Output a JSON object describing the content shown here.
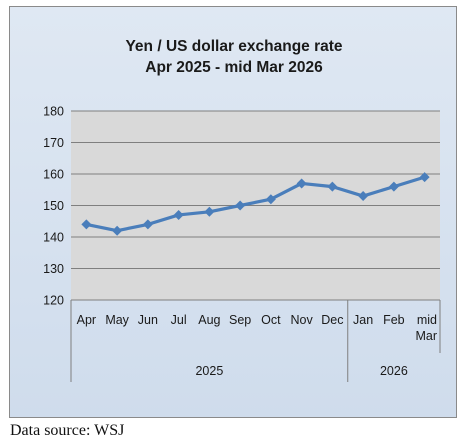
{
  "chart_data": {
    "type": "line",
    "title_lines": [
      "Yen / US dollar exchange rate",
      "Apr 2025  - mid Mar 2026"
    ],
    "categories": [
      "Apr",
      "May",
      "Jun",
      "Jul",
      "Aug",
      "Sep",
      "Oct",
      "Nov",
      "Dec",
      "Jan",
      "Feb",
      "mid Mar"
    ],
    "category_groups": [
      {
        "label": "2025",
        "count": 9
      },
      {
        "label": "2026",
        "count": 3
      }
    ],
    "series": [
      {
        "values": [
          144,
          142,
          144,
          147,
          148,
          150,
          152,
          157,
          156,
          153,
          156,
          159
        ]
      }
    ],
    "ylim": [
      120,
      180
    ],
    "yticks": [
      120,
      130,
      140,
      150,
      160,
      170,
      180
    ],
    "grid": true,
    "legend": "none",
    "colors": {
      "line": "#4a7ebb",
      "plot_bg": "#d9d9d9",
      "grid": "#7f7f7f"
    }
  },
  "source_note": "Data source: WSJ"
}
